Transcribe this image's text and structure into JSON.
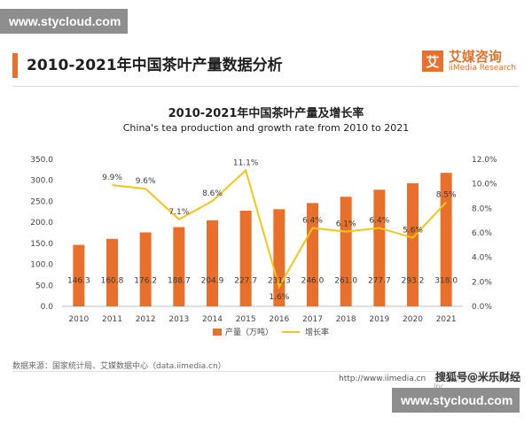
{
  "watermark": "www.stycloud.com",
  "page_title": "2010-2021年中国茶叶产量数据分析",
  "logo": {
    "cn": "艾媒咨询",
    "en": "iiMedia Research",
    "mark": "艾"
  },
  "source_text": "数据来源：国家统计局、艾媒数据中心（data.iimedia.cn）",
  "url_text": "http://www.iimedia.cn",
  "copyright_text": "©2022 iiMedia Research Inc",
  "zhihu_text": "搜狐号@米乐财经",
  "colors": {
    "bar": "#e8702a",
    "line": "#f5c518",
    "accent": "#e8702a"
  },
  "chart_data": {
    "type": "bar",
    "title": "2010-2021年中国茶叶产量及增长率",
    "subtitle": "China's tea production and growth rate from 2010 to 2021",
    "categories": [
      "2010",
      "2011",
      "2012",
      "2013",
      "2014",
      "2015",
      "2016",
      "2017",
      "2018",
      "2019",
      "2020",
      "2021"
    ],
    "series": [
      {
        "name": "产量（万吨）",
        "type": "bar",
        "axis": "left",
        "values": [
          146.3,
          160.8,
          176.2,
          188.7,
          204.9,
          227.7,
          231.3,
          246.0,
          261.0,
          277.7,
          293.2,
          318.0
        ],
        "labels": [
          "146.3",
          "160.8",
          "176.2",
          "188.7",
          "204.9",
          "227.7",
          "231.3",
          "246.0",
          "261.0",
          "277.7",
          "293.2",
          "318.0"
        ]
      },
      {
        "name": "增长率",
        "type": "line",
        "axis": "right",
        "values": [
          null,
          9.9,
          9.6,
          7.1,
          8.6,
          11.1,
          1.6,
          6.4,
          6.1,
          6.4,
          5.6,
          8.5
        ],
        "labels": [
          "",
          "9.9%",
          "9.6%",
          "7.1%",
          "8.6%",
          "11.1%",
          "1.6%",
          "6.4%",
          "6.1%",
          "6.4%",
          "5.6%",
          "8.5%"
        ]
      }
    ],
    "ylim": [
      0,
      350
    ],
    "y_ticks": [
      "0.0",
      "50.0",
      "100.0",
      "150.0",
      "200.0",
      "250.0",
      "300.0",
      "350.0"
    ],
    "y2lim": [
      0,
      12
    ],
    "y2_ticks": [
      "0.0%",
      "2.0%",
      "4.0%",
      "6.0%",
      "8.0%",
      "10.0%",
      "12.0%"
    ],
    "legend": {
      "bar": "产量（万吨）",
      "line": "增长率",
      "placement": "bottom"
    }
  }
}
